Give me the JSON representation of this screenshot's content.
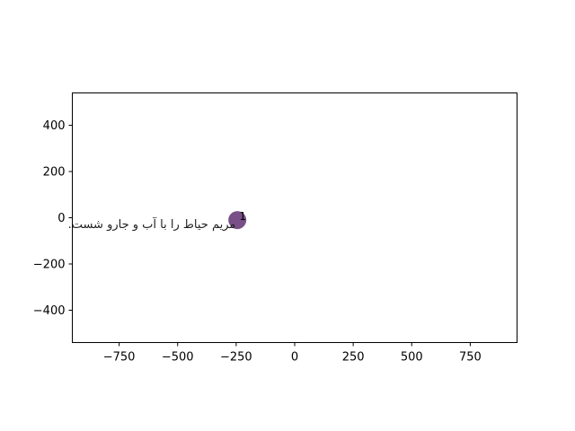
{
  "chart_data": {
    "type": "scatter",
    "title": "",
    "xlabel": "",
    "ylabel": "",
    "xlim": [
      -950,
      950
    ],
    "ylim": [
      -540,
      540
    ],
    "grid": false,
    "x_ticks": [
      -750,
      -500,
      -250,
      0,
      250,
      500,
      750
    ],
    "y_ticks": [
      400,
      200,
      0,
      -200,
      -400
    ],
    "x_tick_labels": [
      "−750",
      "−500",
      "−250",
      "0",
      "250",
      "500",
      "750"
    ],
    "y_tick_labels": [
      "400",
      "200",
      "0",
      "−200",
      "−400"
    ],
    "points": [
      {
        "x": -245,
        "y": -10,
        "label": "1",
        "color": "#6a3d7a"
      }
    ],
    "annotations": [
      {
        "text": "مریم حیاط را با آب و جارو شست.",
        "x": 330,
        "y": -30
      }
    ]
  }
}
